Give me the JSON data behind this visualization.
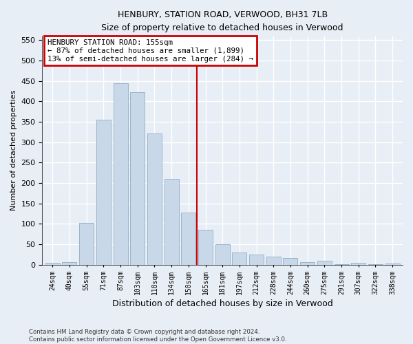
{
  "title1": "HENBURY, STATION ROAD, VERWOOD, BH31 7LB",
  "title2": "Size of property relative to detached houses in Verwood",
  "xlabel": "Distribution of detached houses by size in Verwood",
  "ylabel": "Number of detached properties",
  "categories": [
    "24sqm",
    "40sqm",
    "55sqm",
    "71sqm",
    "87sqm",
    "103sqm",
    "118sqm",
    "134sqm",
    "150sqm",
    "165sqm",
    "181sqm",
    "197sqm",
    "212sqm",
    "228sqm",
    "244sqm",
    "260sqm",
    "275sqm",
    "291sqm",
    "307sqm",
    "322sqm",
    "338sqm"
  ],
  "values": [
    4,
    6,
    102,
    355,
    445,
    422,
    322,
    210,
    128,
    85,
    50,
    29,
    25,
    20,
    16,
    7,
    10,
    1,
    5,
    1,
    3
  ],
  "bar_color": "#c8d8e8",
  "bar_edge_color": "#9ab4cc",
  "vline_color": "#cc0000",
  "vline_x_index": 8.5,
  "annotation_line1": "HENBURY STATION ROAD: 155sqm",
  "annotation_line2": "← 87% of detached houses are smaller (1,899)",
  "annotation_line3": "13% of semi-detached houses are larger (284) →",
  "annotation_box_facecolor": "#ffffff",
  "annotation_box_edgecolor": "#cc0000",
  "ylim": [
    0,
    560
  ],
  "yticks": [
    0,
    50,
    100,
    150,
    200,
    250,
    300,
    350,
    400,
    450,
    500,
    550
  ],
  "bg_color": "#e8eef5",
  "grid_color": "#ffffff",
  "footnote1": "Contains HM Land Registry data © Crown copyright and database right 2024.",
  "footnote2": "Contains public sector information licensed under the Open Government Licence v3.0."
}
